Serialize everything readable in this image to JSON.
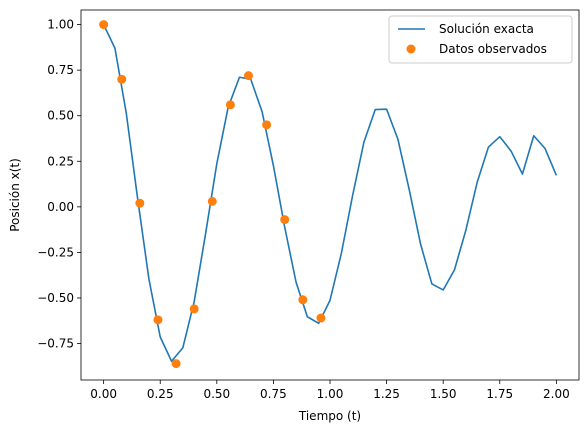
{
  "chart_data": {
    "type": "line",
    "xlabel": "Tiempo (t)",
    "ylabel": "Posición x(t)",
    "xlim": [
      -0.1,
      2.1
    ],
    "ylim": [
      -0.95,
      1.08
    ],
    "grid": false,
    "legend_position": "top-right",
    "x_ticks": [
      "0.00",
      "0.25",
      "0.50",
      "0.75",
      "1.00",
      "1.25",
      "1.50",
      "1.75",
      "2.00"
    ],
    "y_ticks": [
      "1.00",
      "0.75",
      "0.50",
      "0.25",
      "0.00",
      "−0.25",
      "−0.50",
      "−0.75"
    ],
    "series": [
      {
        "name": "Solución exacta",
        "kind": "line",
        "color": "#1f77b4",
        "x": [
          0.0,
          0.05,
          0.1,
          0.15,
          0.2,
          0.25,
          0.3,
          0.35,
          0.4,
          0.45,
          0.5,
          0.55,
          0.6,
          0.65,
          0.7,
          0.75,
          0.8,
          0.85,
          0.9,
          0.95,
          1.0,
          1.05,
          1.1,
          1.15,
          1.2,
          1.25,
          1.3,
          1.35,
          1.4,
          1.45,
          1.5,
          1.55,
          1.6,
          1.65,
          1.7,
          1.75,
          1.8,
          1.85,
          1.9,
          1.95,
          2.0
        ],
        "y": [
          1.0,
          0.87,
          0.514,
          0.047,
          -0.396,
          -0.714,
          -0.847,
          -0.773,
          -0.52,
          -0.15,
          0.237,
          0.546,
          0.711,
          0.7,
          0.522,
          0.226,
          -0.112,
          -0.413,
          -0.603,
          -0.639,
          -0.513,
          -0.256,
          0.063,
          0.356,
          0.534,
          0.536,
          0.371,
          0.094,
          -0.204,
          -0.423,
          -0.456,
          -0.345,
          -0.129,
          0.134,
          0.328,
          0.385,
          0.306,
          0.18,
          0.39,
          0.32,
          0.173
        ]
      },
      {
        "name": "Datos observados",
        "kind": "scatter",
        "color": "#ff7f0e",
        "x": [
          0.0,
          0.08,
          0.16,
          0.24,
          0.32,
          0.4,
          0.48,
          0.56,
          0.64,
          0.72,
          0.8,
          0.88,
          0.96
        ],
        "y": [
          1.0,
          0.7,
          0.02,
          -0.62,
          -0.86,
          -0.56,
          0.03,
          0.56,
          0.72,
          0.45,
          -0.07,
          -0.51,
          -0.61
        ]
      }
    ]
  }
}
